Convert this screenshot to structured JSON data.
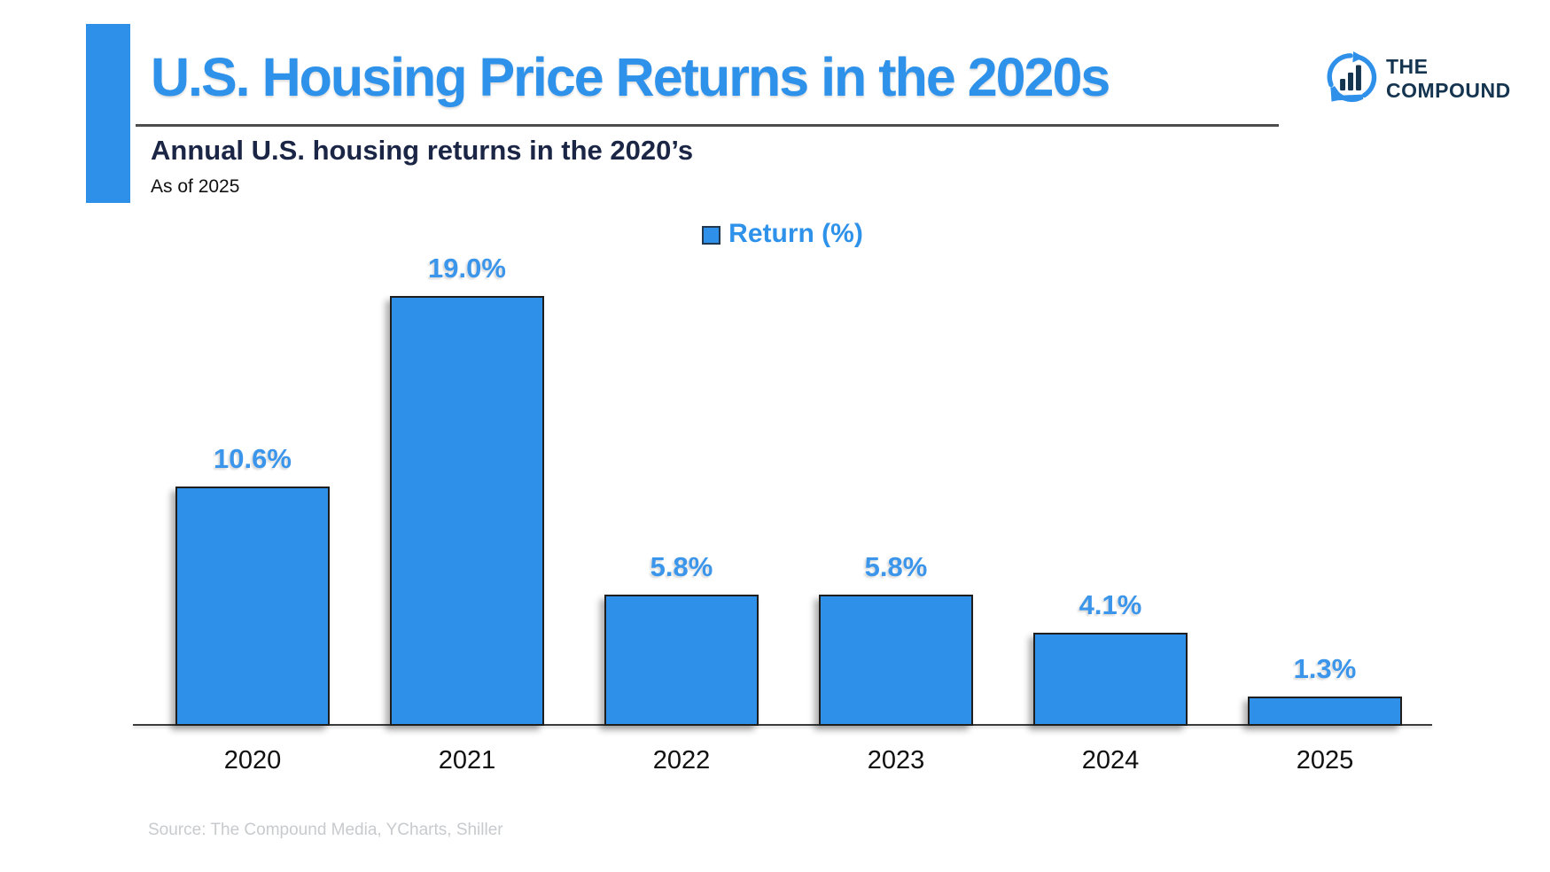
{
  "header": {
    "title": "U.S. Housing Price Returns in the 2020s",
    "subtitle": "Annual U.S. housing returns in the 2020’s",
    "as_of": "As of 2025",
    "logo": {
      "line1": "THE",
      "line2": "COMPOUND"
    }
  },
  "legend": {
    "label": "Return (%)"
  },
  "chart_data": {
    "type": "bar",
    "title": "Annual U.S. housing returns in the 2020’s",
    "series_name": "Return (%)",
    "categories": [
      "2020",
      "2021",
      "2022",
      "2023",
      "2024",
      "2025"
    ],
    "values": [
      10.6,
      19.0,
      5.8,
      5.8,
      4.1,
      1.3
    ],
    "value_labels": [
      "10.6%",
      "19.0%",
      "5.8%",
      "5.8%",
      "4.1%",
      "1.3%"
    ],
    "xlabel": "",
    "ylabel": "Return (%)",
    "ylim": [
      0,
      20
    ],
    "grid": false,
    "legend_position": "top-center",
    "bar_color": "#2E90E9",
    "bar_border_color": "#1E1E1E",
    "label_color": "#3B96EB"
  },
  "footer": {
    "source": "Source: The Compound Media, YCharts, Shiller"
  },
  "colors": {
    "accent_blue": "#2E90E9",
    "title_blue": "#2F92EA",
    "navy": "#1B2545",
    "logo_navy": "#14344F",
    "divider_gray": "#4D4D4D",
    "source_gray": "#C8CBCD"
  }
}
